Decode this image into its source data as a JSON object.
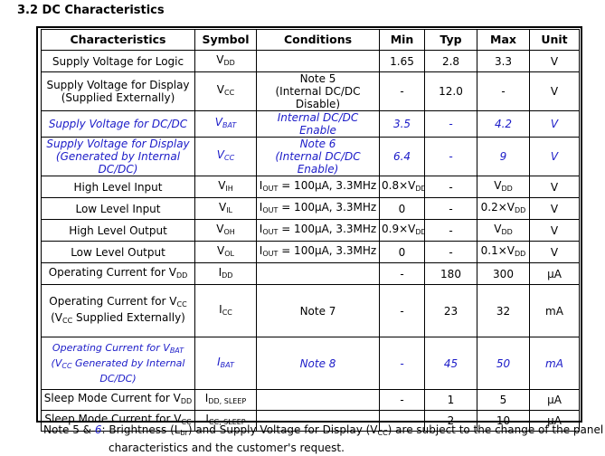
{
  "section_title": "3.2 DC Characteristics",
  "headers": [
    "Characteristics",
    "Symbol",
    "Conditions",
    "Min",
    "Typ",
    "Max",
    "Unit"
  ],
  "rows": [
    {
      "char": [
        "Supply Voltage for Logic"
      ],
      "sym": [
        "V",
        "DD"
      ],
      "cond": [
        [
          "",
          "",
          ""
        ]
      ],
      "min": [
        "",
        ""
      ],
      "typ": "2.8",
      "max": [
        "3.3",
        ""
      ],
      "unit": "V",
      "min_text": "1.65"
    },
    {
      "char": [
        "Supply Voltage for Display",
        "(Supplied Externally)"
      ],
      "sym": [
        "V",
        "CC"
      ],
      "cond": [
        [
          "Note 5",
          "",
          ""
        ],
        [
          "(Internal DC/DC Disable)",
          "",
          ""
        ]
      ],
      "min_text": "-",
      "typ": "12.0",
      "max": [
        "-",
        ""
      ],
      "unit": "V"
    },
    {
      "char": [
        "Supply Voltage for DC/DC"
      ],
      "sym": [
        "V",
        "BAT"
      ],
      "cond": [
        [
          "Internal DC/DC Enable",
          "",
          ""
        ]
      ],
      "min_text": "3.5",
      "typ": "-",
      "max": [
        "4.2",
        ""
      ],
      "unit": "V"
    },
    {
      "char": [
        "Supply Voltage for Display",
        "(Generated by Internal DC/DC)"
      ],
      "sym": [
        "V",
        "CC"
      ],
      "cond": [
        [
          "Note 6",
          "",
          ""
        ],
        [
          "(Internal DC/DC Enable)",
          "",
          ""
        ]
      ],
      "min_text": "6.4",
      "typ": "-",
      "max": [
        "9",
        ""
      ],
      "unit": "V"
    },
    {
      "char": [
        "High Level Input"
      ],
      "sym": [
        "V",
        "IH"
      ],
      "cond": [
        [
          "I",
          "OUT",
          " = 100μA, 3.3MHz"
        ]
      ],
      "min_text": "0.8×V",
      "min_sub": "DD",
      "typ": "-",
      "max": [
        "V",
        "DD"
      ],
      "unit": "V"
    },
    {
      "char": [
        "Low Level Input"
      ],
      "sym": [
        "V",
        "IL"
      ],
      "cond": [
        [
          "I",
          "OUT",
          " = 100μA, 3.3MHz"
        ]
      ],
      "min_text": "0",
      "typ": "-",
      "max": [
        "0.2×V",
        "DD"
      ],
      "unit": "V"
    },
    {
      "char": [
        "High Level Output"
      ],
      "sym": [
        "V",
        "OH"
      ],
      "cond": [
        [
          "I",
          "OUT",
          " = 100μA, 3.3MHz"
        ]
      ],
      "min_text": "0.9×V",
      "min_sub": "DD",
      "typ": "-",
      "max": [
        "V",
        "DD"
      ],
      "unit": "V"
    },
    {
      "char": [
        "Low Level Output"
      ],
      "sym": [
        "V",
        "OL"
      ],
      "cond": [
        [
          "I",
          "OUT",
          " = 100μA, 3.3MHz"
        ]
      ],
      "min_text": "0",
      "typ": "-",
      "max": [
        "0.1×V",
        "DD"
      ],
      "unit": "V"
    },
    {
      "char": [
        "Operating Current for V"
      ],
      "char_sub": "DD",
      "sym": [
        "I",
        "DD"
      ],
      "cond": [
        [
          "",
          "",
          ""
        ]
      ],
      "min_text": "-",
      "typ": "180",
      "max": [
        "300",
        ""
      ],
      "unit": "μA"
    },
    {
      "char": [
        "Operating Current for V",
        "(V",
        " Supplied Externally)"
      ],
      "char_sub": "CC",
      "sym": [
        "I",
        "CC"
      ],
      "cond": [
        [
          "Note 7",
          "",
          ""
        ]
      ],
      "min_text": "-",
      "typ": "23",
      "max": [
        "32",
        ""
      ],
      "unit": "mA"
    },
    {
      "char": [
        "Operating Current for V",
        "(V",
        " Generated by Internal DC/DC)"
      ],
      "char_sub": "BAT",
      "char_sub2": "CC",
      "sym": [
        "I",
        "BAT"
      ],
      "cond": [
        [
          "Note 8",
          "",
          ""
        ]
      ],
      "min_text": "-",
      "typ": "45",
      "max": [
        "50",
        ""
      ],
      "unit": "mA"
    },
    {
      "char": [
        "Sleep Mode Current for V"
      ],
      "char_sub": "DD",
      "sym": [
        "I",
        "DD, SLEEP"
      ],
      "cond": [
        [
          "",
          "",
          ""
        ]
      ],
      "min_text": "-",
      "typ": "1",
      "max": [
        "5",
        ""
      ],
      "unit": "μA"
    },
    {
      "char": [
        "Sleep Mode Current for V"
      ],
      "char_sub": "CC",
      "sym": [
        "I",
        "CC, SLEEP"
      ],
      "cond": [
        [
          "",
          "",
          ""
        ]
      ],
      "min_text": "-",
      "typ": "2",
      "max": [
        "10",
        ""
      ],
      "unit": "μA"
    }
  ],
  "footnote": {
    "prefix": "Note 5 & ",
    "n6": "6",
    "t1": ": Brightness (L",
    "t1_sub": "br",
    "t2": ") and Supply Voltage for Display (V",
    "t2_sub": "CC",
    "t3": ") are subject to the change of the panel",
    "line2": "characteristics and the customer's request."
  },
  "colors": {
    "emphasis_row": "#1c1cc8"
  }
}
